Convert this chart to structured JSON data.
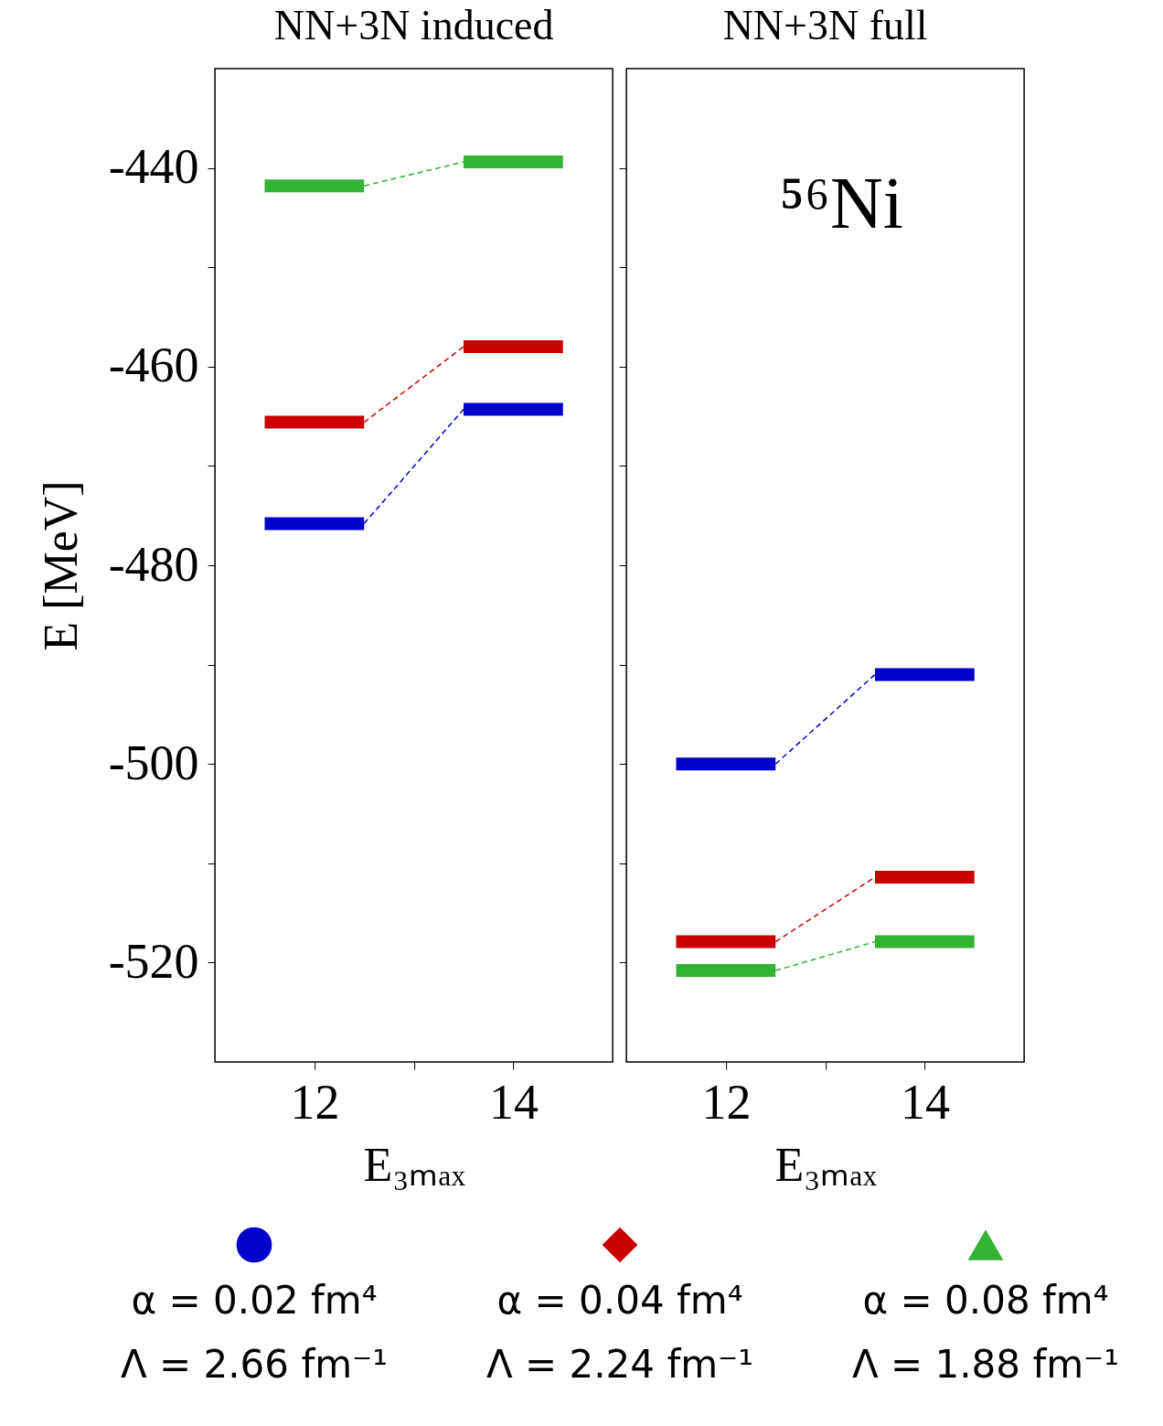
{
  "chart_data": [
    {
      "type": "line",
      "title": "NN+3N induced",
      "xlabel": "E₃ₘₐₓ",
      "ylabel": "E  [MeV]",
      "xlim": [
        11,
        15
      ],
      "xticks": [
        {
          "value": 12,
          "label": "12"
        },
        {
          "value": 13,
          "label": null
        },
        {
          "value": 14,
          "label": "14"
        }
      ],
      "ylim": [
        -530,
        -430
      ],
      "yticks": [
        {
          "value": -520,
          "label": "-520"
        },
        {
          "value": -510,
          "label": null
        },
        {
          "value": -500,
          "label": "-500"
        },
        {
          "value": -490,
          "label": null
        },
        {
          "value": -480,
          "label": "-480"
        },
        {
          "value": -470,
          "label": null
        },
        {
          "value": -460,
          "label": "-460"
        },
        {
          "value": -450,
          "label": null
        },
        {
          "value": -440,
          "label": "-440"
        }
      ],
      "legend": "bottom",
      "series": [
        {
          "name": "α = 0.02 fm⁴\nΛ = 2.66 fm⁻¹",
          "color": "#0000cc",
          "line_style": "solid",
          "x": [
            11.5,
            12.5
          ],
          "values": [
            -475.8,
            -475.8
          ]
        },
        {
          "color": "#0000cc",
          "line_style": "solid",
          "x": [
            13.5,
            14.5
          ],
          "values": [
            -464.3,
            -464.3
          ]
        },
        {
          "color": "#0000cc",
          "line_style": "dashed",
          "x": [
            12.5,
            13.5
          ],
          "values": [
            -475.8,
            -464.3
          ]
        },
        {
          "name": "α = 0.04 fm⁴\nΛ = 2.24 fm⁻¹",
          "color": "#cc0000",
          "line_style": "solid",
          "x": [
            11.5,
            12.5
          ],
          "values": [
            -465.6,
            -465.6
          ]
        },
        {
          "color": "#cc0000",
          "line_style": "solid",
          "x": [
            13.5,
            14.5
          ],
          "values": [
            -458.0,
            -458.0
          ]
        },
        {
          "color": "#cc0000",
          "line_style": "dashed",
          "x": [
            12.5,
            13.5
          ],
          "values": [
            -465.6,
            -458.0
          ]
        },
        {
          "name": "α = 0.08 fm⁴\nΛ = 1.88 fm⁻¹",
          "color": "#33b233",
          "line_style": "solid",
          "x": [
            11.5,
            12.5
          ],
          "values": [
            -441.8,
            -441.8
          ]
        },
        {
          "color": "#33b233",
          "line_style": "solid",
          "x": [
            13.5,
            14.5
          ],
          "values": [
            -439.4,
            -439.4
          ]
        },
        {
          "color": "#33b233",
          "line_style": "dashed",
          "x": [
            12.5,
            13.5
          ],
          "values": [
            -441.8,
            -439.4
          ]
        }
      ]
    },
    {
      "type": "line",
      "title": "NN+3N full",
      "xlabel": "E₃ₘₐₓ",
      "xlim": [
        11,
        15
      ],
      "xticks": [
        {
          "value": 12,
          "label": "12"
        },
        {
          "value": 13,
          "label": null
        },
        {
          "value": 14,
          "label": "14"
        }
      ],
      "ylim": [
        -530,
        -430
      ],
      "yticks": [
        {
          "value": -520,
          "label": null
        },
        {
          "value": -510,
          "label": null
        },
        {
          "value": -500,
          "label": null
        },
        {
          "value": -490,
          "label": null
        },
        {
          "value": -480,
          "label": null
        },
        {
          "value": -470,
          "label": null
        },
        {
          "value": -460,
          "label": null
        },
        {
          "value": -450,
          "label": null
        },
        {
          "value": -440,
          "label": null
        }
      ],
      "tick_labels": "x",
      "annotations": [
        "⁵⁶Ni"
      ],
      "series": [
        {
          "color": "#0000cc",
          "line_style": "solid",
          "x": [
            11.5,
            12.5
          ],
          "values": [
            -500.0,
            -500.0
          ]
        },
        {
          "color": "#0000cc",
          "line_style": "solid",
          "x": [
            13.5,
            14.5
          ],
          "values": [
            -491.0,
            -491.0
          ]
        },
        {
          "color": "#0000cc",
          "line_style": "dashed",
          "x": [
            12.5,
            13.5
          ],
          "values": [
            -500.0,
            -491.0
          ]
        },
        {
          "color": "#cc0000",
          "line_style": "solid",
          "x": [
            11.5,
            12.5
          ],
          "values": [
            -517.9,
            -517.9
          ]
        },
        {
          "color": "#cc0000",
          "line_style": "solid",
          "x": [
            13.5,
            14.5
          ],
          "values": [
            -511.4,
            -511.4
          ]
        },
        {
          "color": "#cc0000",
          "line_style": "dashed",
          "x": [
            12.5,
            13.5
          ],
          "values": [
            -517.9,
            -511.4
          ]
        },
        {
          "color": "#33b233",
          "line_style": "solid",
          "x": [
            11.5,
            12.5
          ],
          "values": [
            -520.8,
            -520.8
          ]
        },
        {
          "color": "#33b233",
          "line_style": "solid",
          "x": [
            13.5,
            14.5
          ],
          "values": [
            -517.9,
            -517.9
          ]
        },
        {
          "color": "#33b233",
          "line_style": "dashed",
          "x": [
            12.5,
            13.5
          ],
          "values": [
            -520.8,
            -517.9
          ]
        }
      ]
    }
  ]
}
